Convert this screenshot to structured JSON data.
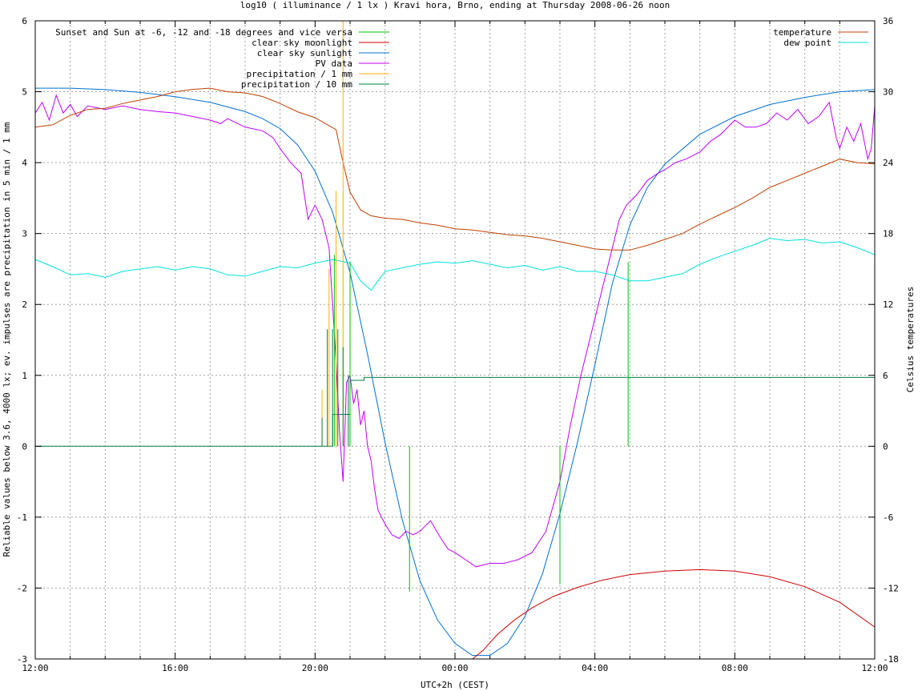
{
  "chart_data": {
    "type": "line",
    "title": "log10 ( illuminance / 1 lx ) Kravi hora, Brno, ending at Thursday 2008-06-26 noon",
    "xlabel": "UTC+2h (CEST)",
    "ylabel": "Reliable values below 3.6, 4000 lx; ev. impulses are precipitation in 5 min / 1 mm",
    "y2label": "Celsius temperatures",
    "x_unit": "hours after 12:00 on 2008-06-25",
    "xlim": [
      0,
      24
    ],
    "ylim": [
      -3,
      6
    ],
    "y2lim": [
      -18,
      36
    ],
    "grid": true,
    "x_ticks": [
      {
        "v": 0,
        "label": "12:00"
      },
      {
        "v": 4,
        "label": "16:00"
      },
      {
        "v": 8,
        "label": "20:00"
      },
      {
        "v": 12,
        "label": "00:00"
      },
      {
        "v": 16,
        "label": "04:00"
      },
      {
        "v": 20,
        "label": "08:00"
      },
      {
        "v": 24,
        "label": "12:00"
      }
    ],
    "y_ticks": [
      {
        "v": 6,
        "label": "6"
      },
      {
        "v": 5,
        "label": "5"
      },
      {
        "v": 4,
        "label": "4"
      },
      {
        "v": 3,
        "label": "3"
      },
      {
        "v": 2,
        "label": "2"
      },
      {
        "v": 1,
        "label": "1"
      },
      {
        "v": 0,
        "label": "0"
      },
      {
        "v": -1,
        "label": "-1"
      },
      {
        "v": -2,
        "label": "-2"
      },
      {
        "v": -3,
        "label": "-3"
      }
    ],
    "y2_ticks": [
      {
        "v": 36,
        "label": "36"
      },
      {
        "v": 30,
        "label": "30"
      },
      {
        "v": 24,
        "label": "24"
      },
      {
        "v": 18,
        "label": "18"
      },
      {
        "v": 12,
        "label": "12"
      },
      {
        "v": 6,
        "label": "6"
      },
      {
        "v": 0,
        "label": "0"
      },
      {
        "v": -6,
        "label": "-6"
      },
      {
        "v": -12,
        "label": "-12"
      },
      {
        "v": -18,
        "label": "-18"
      }
    ],
    "legend_left": {
      "placement": "top-left",
      "entries": [
        {
          "name": "Sunset and Sun at -6, -12 and -18 degrees and vice versa",
          "color": "#00c000"
        },
        {
          "name": "clear sky moonlight",
          "color": "#d00000"
        },
        {
          "name": "clear sky sunlight",
          "color": "#0070d0"
        },
        {
          "name": "PV data",
          "color": "#c000ff"
        },
        {
          "name": "precipitation / 1 mm",
          "color": "#ffb000"
        },
        {
          "name": "precipitation / 10 mm",
          "color": "#008040"
        }
      ]
    },
    "legend_right": {
      "placement": "top-right",
      "entries": [
        {
          "name": "temperature",
          "color": "#c04000"
        },
        {
          "name": "dew point",
          "color": "#00e0e0"
        }
      ]
    },
    "series": [
      {
        "name": "clear sky sunlight",
        "color": "#0070d0",
        "axis": "y1",
        "x": [
          0,
          1,
          2,
          3,
          4,
          5,
          6,
          6.5,
          7,
          7.5,
          8,
          8.5,
          9,
          9.5,
          10,
          10.5,
          11,
          11.5,
          12,
          12.5,
          13,
          13.5,
          14,
          14.5,
          15,
          15.5,
          16,
          16.5,
          17,
          17.5,
          18,
          19,
          20,
          21,
          22,
          23,
          24
        ],
        "y": [
          5.05,
          5.05,
          5.03,
          4.99,
          4.93,
          4.85,
          4.72,
          4.62,
          4.48,
          4.25,
          3.88,
          3.3,
          2.45,
          1.3,
          0.05,
          -1.05,
          -1.9,
          -2.45,
          -2.78,
          -2.95,
          -2.95,
          -2.78,
          -2.4,
          -1.8,
          -0.95,
          0.05,
          1.15,
          2.3,
          3.12,
          3.65,
          3.98,
          4.4,
          4.65,
          4.82,
          4.92,
          5.0,
          5.03
        ]
      },
      {
        "name": "clear sky moonlight",
        "color": "#d00000",
        "axis": "y1",
        "x": [
          12.5,
          12.8,
          13.2,
          13.7,
          14.2,
          14.8,
          15.5,
          16.2,
          17,
          18,
          19,
          20,
          21,
          22,
          23,
          24
        ],
        "y": [
          -3.0,
          -2.88,
          -2.66,
          -2.45,
          -2.28,
          -2.12,
          -1.99,
          -1.89,
          -1.81,
          -1.76,
          -1.74,
          -1.76,
          -1.84,
          -1.98,
          -2.2,
          -2.55
        ]
      },
      {
        "name": "PV data",
        "color": "#c000ff",
        "axis": "y1",
        "x": [
          0,
          0.2,
          0.4,
          0.6,
          0.8,
          1.0,
          1.2,
          1.5,
          2,
          2.5,
          3,
          3.5,
          4,
          4.5,
          5,
          5.3,
          5.5,
          6,
          6.5,
          6.8,
          7,
          7.3,
          7.6,
          7.8,
          8,
          8.2,
          8.4,
          8.5,
          8.6,
          8.7,
          8.8,
          8.9,
          9.0,
          9.1,
          9.2,
          9.3,
          9.4,
          9.5,
          9.6,
          9.7,
          9.8,
          9.9,
          10.0,
          10.2,
          10.4,
          10.6,
          10.8,
          11,
          11.3,
          11.6,
          11.8,
          12,
          12.3,
          12.6,
          13,
          13.4,
          13.8,
          14.2,
          14.6,
          15.0,
          15.3,
          15.6,
          15.9,
          16.1,
          16.3,
          16.5,
          16.7,
          16.9,
          17.2,
          17.5,
          17.8,
          18,
          18.3,
          18.6,
          19,
          19.3,
          19.6,
          20,
          20.3,
          20.6,
          20.9,
          21.2,
          21.5,
          21.8,
          22.1,
          22.4,
          22.7,
          22.9,
          23,
          23.2,
          23.4,
          23.6,
          23.8,
          23.9,
          24
        ],
        "y": [
          4.7,
          4.85,
          4.6,
          4.95,
          4.7,
          4.82,
          4.65,
          4.8,
          4.75,
          4.8,
          4.75,
          4.72,
          4.7,
          4.65,
          4.6,
          4.55,
          4.62,
          4.5,
          4.45,
          4.35,
          4.2,
          4.0,
          3.85,
          3.2,
          3.4,
          3.2,
          2.8,
          2.0,
          1.2,
          0.2,
          -0.5,
          0.9,
          1.0,
          0.6,
          0.8,
          0.3,
          0.5,
          0.0,
          -0.2,
          -0.6,
          -0.9,
          -1.0,
          -1.1,
          -1.25,
          -1.3,
          -1.2,
          -1.25,
          -1.2,
          -1.05,
          -1.3,
          -1.45,
          -1.5,
          -1.6,
          -1.7,
          -1.65,
          -1.65,
          -1.6,
          -1.5,
          -1.2,
          -0.5,
          0.3,
          1.0,
          1.6,
          2.0,
          2.4,
          2.8,
          3.2,
          3.4,
          3.55,
          3.75,
          3.85,
          3.9,
          4.0,
          4.05,
          4.15,
          4.3,
          4.4,
          4.6,
          4.5,
          4.5,
          4.55,
          4.7,
          4.6,
          4.75,
          4.55,
          4.65,
          4.85,
          4.35,
          4.2,
          4.5,
          4.3,
          4.55,
          4.05,
          4.2,
          4.8
        ]
      },
      {
        "name": "temperature",
        "color": "#c04000",
        "axis": "y2",
        "x": [
          0,
          0.5,
          1,
          1.5,
          2,
          2.5,
          3,
          3.5,
          4,
          4.5,
          5,
          5.5,
          6,
          6.5,
          7,
          7.5,
          8,
          8.3,
          8.6,
          8.8,
          9.0,
          9.3,
          9.6,
          10,
          10.5,
          11,
          11.5,
          12,
          12.5,
          13,
          13.5,
          14,
          14.5,
          15,
          15.5,
          16,
          16.5,
          17,
          17.5,
          18,
          18.5,
          19,
          19.5,
          20,
          20.5,
          21,
          21.5,
          22,
          22.5,
          23,
          23.5,
          24
        ],
        "y": [
          27,
          27.2,
          28.0,
          28.5,
          28.6,
          29.0,
          29.3,
          29.6,
          30.0,
          30.2,
          30.3,
          30.0,
          29.9,
          29.6,
          29.0,
          28.3,
          27.8,
          27.3,
          26.8,
          24.0,
          21.5,
          20.0,
          19.5,
          19.3,
          19.2,
          18.9,
          18.7,
          18.4,
          18.3,
          18.1,
          17.9,
          17.8,
          17.6,
          17.3,
          17.0,
          16.7,
          16.6,
          16.6,
          17.0,
          17.5,
          18.0,
          18.8,
          19.5,
          20.2,
          21.0,
          21.9,
          22.5,
          23.1,
          23.7,
          24.3,
          24.0,
          23.9
        ]
      },
      {
        "name": "dew point",
        "color": "#00e0e0",
        "axis": "y2",
        "x": [
          0,
          0.5,
          1,
          1.5,
          2,
          2.5,
          3,
          3.5,
          4,
          4.5,
          5,
          5.5,
          6,
          6.5,
          7,
          7.5,
          8,
          8.5,
          9,
          9.3,
          9.6,
          10,
          10.5,
          11,
          11.5,
          12,
          12.5,
          13,
          13.5,
          14,
          14.5,
          15,
          15.5,
          16,
          16.5,
          17,
          17.5,
          18,
          18.5,
          19,
          19.5,
          20,
          20.5,
          21,
          21.5,
          22,
          22.5,
          23,
          23.5,
          24
        ],
        "y": [
          15.8,
          15.2,
          14.5,
          14.6,
          14.3,
          14.8,
          15.0,
          15.2,
          14.9,
          15.2,
          15.0,
          14.5,
          14.4,
          14.8,
          15.2,
          15.1,
          15.5,
          15.8,
          15.5,
          14.0,
          13.2,
          14.8,
          15.1,
          15.4,
          15.6,
          15.5,
          15.7,
          15.4,
          15.1,
          15.3,
          14.9,
          15.2,
          14.8,
          14.8,
          14.5,
          14.0,
          14.0,
          14.3,
          14.6,
          15.4,
          16.0,
          16.5,
          17.0,
          17.6,
          17.4,
          17.5,
          17.2,
          17.3,
          16.8,
          16.2
        ]
      }
    ],
    "precipitation_1mm": {
      "color": "#ffb000",
      "x": [
        8.2,
        8.4,
        8.6,
        8.8,
        9.0
      ],
      "y": [
        0.8,
        2.5,
        3.6,
        6.0,
        2.0
      ]
    },
    "precipitation_10mm": {
      "color": "#008040",
      "x": [
        8.2,
        8.35,
        8.5,
        8.65,
        8.8,
        8.95
      ],
      "y": [
        0.4,
        1.65,
        1.65,
        1.65,
        1.4,
        1.0
      ],
      "step_x": [
        0,
        8.5,
        9.0,
        9.4,
        24
      ],
      "step_y": [
        0,
        0.45,
        0.93,
        0.97,
        0.97
      ]
    },
    "sun_markers": {
      "color": "#00c000",
      "x": [
        8.55,
        9.0,
        9.7,
        10.7,
        15.0,
        16.0,
        16.95
      ],
      "y": [
        2.7,
        2.6,
        0.0,
        -2.05,
        -1.95,
        0.0,
        2.6
      ]
    }
  }
}
